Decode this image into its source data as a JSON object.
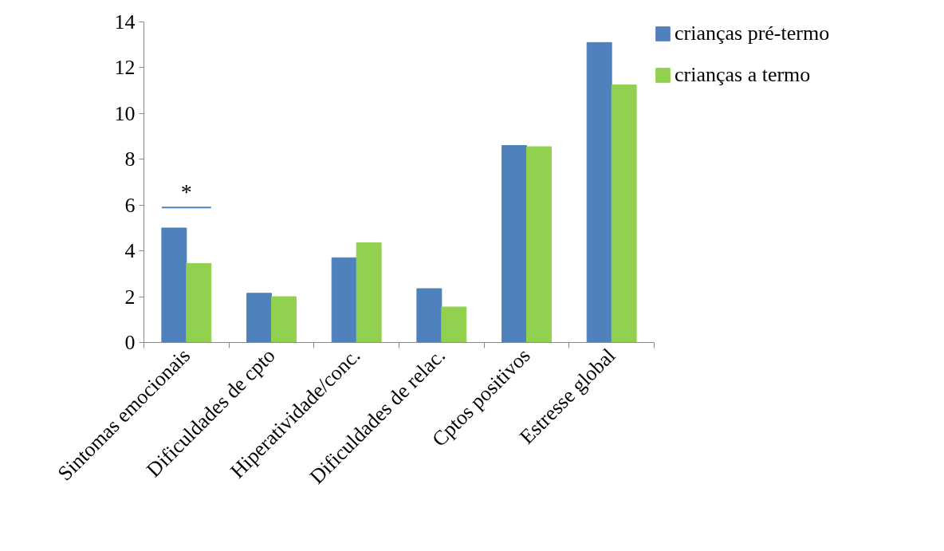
{
  "chart_data": {
    "type": "bar",
    "categories": [
      "Sintomas emocionais",
      "Dificuldades de cpto",
      "Hiperatividade/conc.",
      "Dificuldades de relac.",
      "Cptos positivos",
      "Estresse global"
    ],
    "series": [
      {
        "name": "crianças pré-termo",
        "color": "#4f81bd",
        "values": [
          5.0,
          2.15,
          3.7,
          2.35,
          8.6,
          13.1
        ]
      },
      {
        "name": "crianças a termo",
        "color": "#92d050",
        "values": [
          3.45,
          2.0,
          4.35,
          1.55,
          8.55,
          11.25
        ]
      }
    ],
    "ylim": [
      0,
      14
    ],
    "yticks": [
      0,
      2,
      4,
      6,
      8,
      10,
      12,
      14
    ],
    "grid": false,
    "legend": "right",
    "annotations": [
      "*"
    ]
  }
}
